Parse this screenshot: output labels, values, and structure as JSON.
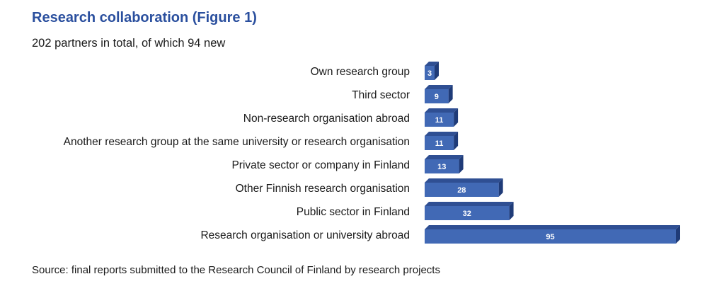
{
  "title": "Research collaboration (Figure 1)",
  "subtitle": "202 partners in total, of which 94 new",
  "source": "Source: final reports submitted to the Research Council of Finland by research projects",
  "colors": {
    "bar_front": "#4169b5",
    "bar_top": "#2f4f93",
    "bar_side": "#1f3b78",
    "title": "#2a4f9e"
  },
  "chart_data": {
    "type": "bar",
    "orientation": "horizontal",
    "categories": [
      "Own research group",
      "Third sector",
      "Non-research organisation abroad",
      "Another research group at the same university or research organisation",
      "Private sector or company in Finland",
      "Other Finnish research organisation",
      "Public sector in Finland",
      "Research organisation or university abroad"
    ],
    "values": [
      3,
      9,
      11,
      11,
      13,
      28,
      32,
      95
    ],
    "xlim": [
      0,
      95
    ],
    "grid": false,
    "legend": "none",
    "style": "3d"
  }
}
